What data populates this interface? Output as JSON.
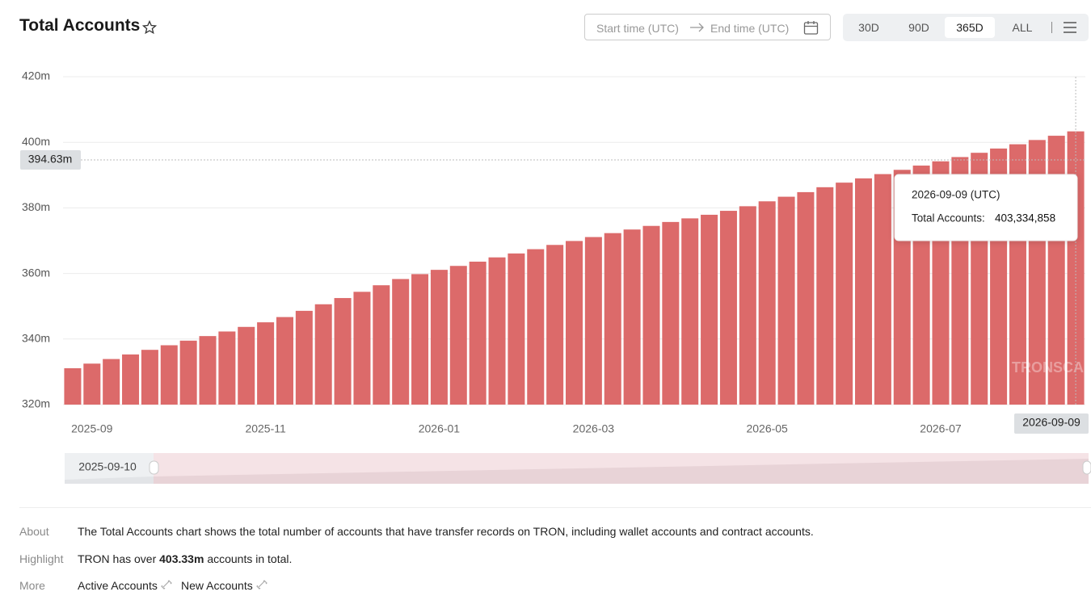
{
  "header": {
    "title": "Total Accounts",
    "start_placeholder": "Start time (UTC)",
    "end_placeholder": "End time (UTC)",
    "ranges": [
      "30D",
      "90D",
      "365D",
      "ALL"
    ]
  },
  "chart_data": {
    "type": "bar",
    "color": "#dc6a6a",
    "grid": true,
    "categories": [
      null,
      "2025-09",
      null,
      null,
      null,
      null,
      null,
      null,
      null,
      null,
      "2025-11",
      null,
      null,
      null,
      null,
      null,
      null,
      null,
      null,
      "2026-01",
      null,
      null,
      null,
      null,
      null,
      null,
      null,
      "2026-03",
      null,
      null,
      null,
      null,
      null,
      null,
      null,
      null,
      "2026-05",
      null,
      null,
      null,
      null,
      null,
      null,
      null,
      null,
      "2026-07",
      null,
      null,
      null,
      null,
      null,
      null,
      "2026-09-09"
    ],
    "values": [
      331.1,
      332.5,
      333.9,
      335.3,
      336.7,
      338.1,
      339.5,
      340.9,
      342.3,
      343.7,
      345.1,
      346.7,
      348.6,
      350.6,
      352.5,
      354.4,
      356.4,
      358.3,
      359.8,
      361.1,
      362.3,
      363.6,
      364.9,
      366.1,
      367.4,
      368.7,
      369.9,
      371.1,
      372.3,
      373.4,
      374.5,
      375.7,
      376.8,
      377.9,
      379.1,
      380.5,
      382.0,
      383.4,
      384.8,
      386.3,
      387.7,
      389.0,
      390.3,
      391.6,
      392.9,
      394.2,
      395.5,
      396.8,
      398.1,
      399.4,
      400.7,
      402.0,
      403.334858
    ],
    "ylim": [
      320,
      420
    ],
    "yticks": [
      {
        "value": 320,
        "label": "320m"
      },
      {
        "value": 340,
        "label": "340m"
      },
      {
        "value": 360,
        "label": "360m"
      },
      {
        "value": 380,
        "label": "380m"
      },
      {
        "value": 400,
        "label": "400m"
      },
      {
        "value": 420,
        "label": "420m"
      }
    ],
    "y_pointer": {
      "value": 394.63,
      "label": "394.63m"
    }
  },
  "tooltip": {
    "title": "2026-09-09 (UTC)",
    "label": "Total Accounts:",
    "value": "403,334,858"
  },
  "watermark": "TRONSCAN",
  "slider": {
    "start": "2025-09-10"
  },
  "info": {
    "about_label": "About",
    "about_text": "The Total Accounts chart shows the total number of accounts that have transfer records on TRON, including wallet accounts and contract accounts.",
    "highlight_label": "Highlight",
    "highlight_before": "TRON has over",
    "highlight_value": "403.33m",
    "highlight_after": "accounts in total.",
    "more_label": "More",
    "links": [
      "Active Accounts",
      "New Accounts"
    ]
  }
}
